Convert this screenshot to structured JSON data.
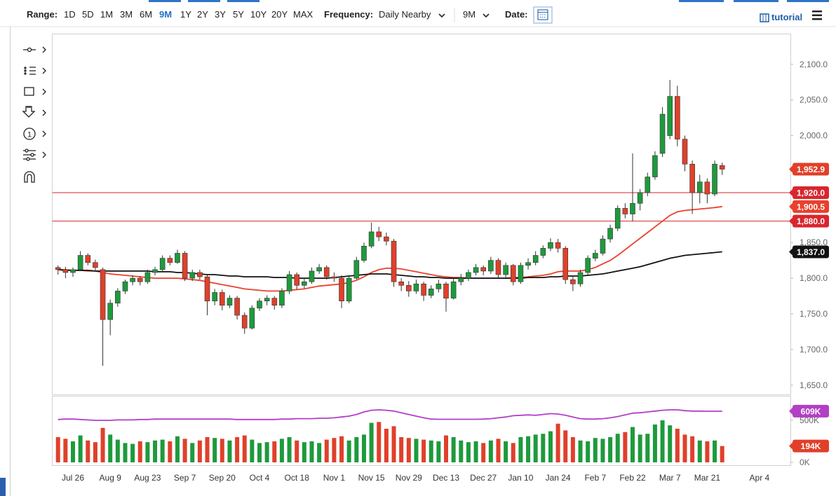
{
  "toolbar": {
    "range_label": "Range:",
    "ranges": [
      "1D",
      "5D",
      "1M",
      "3M",
      "6M",
      "9M",
      "1Y",
      "2Y",
      "3Y",
      "5Y",
      "10Y",
      "20Y",
      "MAX"
    ],
    "frequency_label": "Frequency:",
    "frequency": "Daily Nearby",
    "period": "9M",
    "date_label": "Date:",
    "tutorial": "tutorial"
  },
  "tools": {
    "counter": "1"
  },
  "chart_data": {
    "type": "candlestick",
    "categories": [
      null,
      null,
      "Jul 26",
      null,
      null,
      null,
      null,
      "Aug 9",
      null,
      null,
      null,
      null,
      "Aug 23",
      null,
      null,
      null,
      null,
      "Sep 7",
      null,
      null,
      null,
      null,
      "Sep 20",
      null,
      null,
      null,
      null,
      "Oct 4",
      null,
      null,
      null,
      null,
      "Oct 18",
      null,
      null,
      null,
      null,
      "Nov 1",
      null,
      null,
      null,
      null,
      "Nov 15",
      null,
      null,
      null,
      null,
      "Nov 29",
      null,
      null,
      null,
      null,
      "Dec 13",
      null,
      null,
      null,
      null,
      "Dec 27",
      null,
      null,
      null,
      null,
      "Jan 10",
      null,
      null,
      null,
      null,
      "Jan 24",
      null,
      null,
      null,
      null,
      "Feb 7",
      null,
      null,
      null,
      null,
      "Feb 22",
      null,
      null,
      null,
      null,
      "Mar 7",
      null,
      null,
      null,
      null,
      "Mar 21",
      null,
      null,
      null,
      null,
      null,
      null,
      "Apr 4"
    ],
    "ohlc": [
      [
        1815,
        1818,
        1805,
        1812
      ],
      [
        1812,
        1816,
        1800,
        1808
      ],
      [
        1808,
        1815,
        1802,
        1812
      ],
      [
        1812,
        1838,
        1810,
        1832
      ],
      [
        1832,
        1835,
        1818,
        1822
      ],
      [
        1822,
        1826,
        1810,
        1815
      ],
      [
        1812,
        1815,
        1677,
        1742
      ],
      [
        1742,
        1770,
        1720,
        1765
      ],
      [
        1765,
        1786,
        1760,
        1782
      ],
      [
        1782,
        1798,
        1778,
        1795
      ],
      [
        1795,
        1804,
        1790,
        1800
      ],
      [
        1800,
        1803,
        1790,
        1795
      ],
      [
        1795,
        1812,
        1792,
        1808
      ],
      [
        1808,
        1816,
        1804,
        1812
      ],
      [
        1812,
        1832,
        1808,
        1828
      ],
      [
        1828,
        1832,
        1818,
        1822
      ],
      [
        1822,
        1840,
        1820,
        1835
      ],
      [
        1835,
        1838,
        1796,
        1800
      ],
      [
        1800,
        1812,
        1796,
        1808
      ],
      [
        1808,
        1812,
        1798,
        1802
      ],
      [
        1802,
        1806,
        1748,
        1768
      ],
      [
        1768,
        1785,
        1762,
        1780
      ],
      [
        1780,
        1784,
        1755,
        1762
      ],
      [
        1762,
        1776,
        1758,
        1772
      ],
      [
        1772,
        1775,
        1742,
        1748
      ],
      [
        1748,
        1752,
        1722,
        1730
      ],
      [
        1730,
        1762,
        1728,
        1758
      ],
      [
        1758,
        1772,
        1754,
        1768
      ],
      [
        1768,
        1776,
        1762,
        1772
      ],
      [
        1772,
        1775,
        1756,
        1762
      ],
      [
        1762,
        1786,
        1758,
        1782
      ],
      [
        1782,
        1810,
        1778,
        1805
      ],
      [
        1805,
        1808,
        1784,
        1790
      ],
      [
        1790,
        1800,
        1786,
        1795
      ],
      [
        1795,
        1815,
        1792,
        1810
      ],
      [
        1810,
        1820,
        1806,
        1815
      ],
      [
        1815,
        1818,
        1798,
        1802
      ],
      [
        1802,
        1808,
        1795,
        1800
      ],
      [
        1800,
        1804,
        1758,
        1768
      ],
      [
        1768,
        1804,
        1765,
        1800
      ],
      [
        1800,
        1830,
        1798,
        1825
      ],
      [
        1825,
        1850,
        1822,
        1845
      ],
      [
        1845,
        1878,
        1842,
        1865
      ],
      [
        1865,
        1872,
        1852,
        1858
      ],
      [
        1858,
        1864,
        1846,
        1852
      ],
      [
        1852,
        1855,
        1788,
        1795
      ],
      [
        1795,
        1800,
        1782,
        1790
      ],
      [
        1790,
        1796,
        1774,
        1782
      ],
      [
        1782,
        1798,
        1778,
        1792
      ],
      [
        1792,
        1795,
        1768,
        1776
      ],
      [
        1776,
        1790,
        1772,
        1785
      ],
      [
        1785,
        1798,
        1780,
        1792
      ],
      [
        1792,
        1795,
        1753,
        1772
      ],
      [
        1772,
        1800,
        1770,
        1795
      ],
      [
        1795,
        1806,
        1790,
        1800
      ],
      [
        1800,
        1812,
        1796,
        1808
      ],
      [
        1808,
        1820,
        1804,
        1815
      ],
      [
        1815,
        1818,
        1804,
        1810
      ],
      [
        1810,
        1830,
        1806,
        1825
      ],
      [
        1825,
        1828,
        1800,
        1805
      ],
      [
        1805,
        1822,
        1800,
        1818
      ],
      [
        1818,
        1820,
        1790,
        1795
      ],
      [
        1795,
        1822,
        1792,
        1818
      ],
      [
        1818,
        1828,
        1812,
        1822
      ],
      [
        1822,
        1838,
        1818,
        1832
      ],
      [
        1832,
        1846,
        1828,
        1842
      ],
      [
        1842,
        1856,
        1838,
        1850
      ],
      [
        1850,
        1855,
        1836,
        1842
      ],
      [
        1842,
        1845,
        1792,
        1798
      ],
      [
        1798,
        1804,
        1782,
        1792
      ],
      [
        1792,
        1812,
        1788,
        1808
      ],
      [
        1808,
        1832,
        1804,
        1828
      ],
      [
        1828,
        1840,
        1824,
        1835
      ],
      [
        1835,
        1860,
        1832,
        1855
      ],
      [
        1855,
        1875,
        1850,
        1870
      ],
      [
        1870,
        1902,
        1866,
        1898
      ],
      [
        1898,
        1905,
        1884,
        1890
      ],
      [
        1890,
        1975,
        1880,
        1905
      ],
      [
        1905,
        1925,
        1895,
        1920
      ],
      [
        1920,
        1948,
        1915,
        1942
      ],
      [
        1942,
        1978,
        1938,
        1972
      ],
      [
        1975,
        2040,
        1970,
        2030
      ],
      [
        2000,
        2078,
        1995,
        2055
      ],
      [
        2055,
        2070,
        1985,
        1995
      ],
      [
        1995,
        2000,
        1950,
        1960
      ],
      [
        1960,
        1965,
        1890,
        1920
      ],
      [
        1920,
        1945,
        1905,
        1935
      ],
      [
        1935,
        1940,
        1905,
        1918
      ],
      [
        1918,
        1965,
        1915,
        1960
      ],
      [
        1958,
        1962,
        1945,
        1952.9
      ]
    ],
    "last_label": "1,952.9",
    "ylim": [
      1637,
      2143
    ],
    "yticks": [
      {
        "value": 1650,
        "label": "1,650.0"
      },
      {
        "value": 1700,
        "label": "1,700.0"
      },
      {
        "value": 1750,
        "label": "1,750.0"
      },
      {
        "value": 1800,
        "label": "1,800.0"
      },
      {
        "value": 1850,
        "label": "1,850.0"
      },
      {
        "value": 1900,
        "label": "1,900.0"
      },
      {
        "value": 1950,
        "label": "1,950.0"
      },
      {
        "value": 2000,
        "label": "2,000.0"
      },
      {
        "value": 2050,
        "label": "2,050.0"
      },
      {
        "value": 2100,
        "label": "2,100.0"
      }
    ],
    "levels": [
      {
        "value": 1920,
        "label": "1,920.0"
      },
      {
        "value": 1880,
        "label": "1,880.0"
      }
    ],
    "level_color": "#d9262e",
    "up_color": "#1e9a3c",
    "down_color": "#e0402a",
    "overlays": [
      {
        "color": "#e8412c",
        "last_label": "1,900.5",
        "values": [
          1812,
          1812,
          1811,
          1811,
          1810,
          1810,
          1808,
          1806,
          1805,
          1804,
          1803,
          1802,
          1801,
          1800,
          1800,
          1800,
          1800,
          1799,
          1798,
          1797,
          1795,
          1793,
          1791,
          1789,
          1787,
          1785,
          1784,
          1783,
          1782,
          1782,
          1782,
          1783,
          1784,
          1785,
          1787,
          1789,
          1790,
          1791,
          1792,
          1794,
          1797,
          1802,
          1808,
          1812,
          1814,
          1814,
          1813,
          1811,
          1809,
          1807,
          1805,
          1803,
          1802,
          1801,
          1801,
          1800,
          1800,
          1800,
          1800,
          1800,
          1800,
          1801,
          1801,
          1802,
          1803,
          1804,
          1806,
          1809,
          1810,
          1810,
          1810,
          1812,
          1815,
          1820,
          1825,
          1832,
          1840,
          1848,
          1856,
          1864,
          1872,
          1880,
          1888,
          1893,
          1895,
          1896,
          1897,
          1898,
          1899,
          1900.5
        ]
      },
      {
        "color": "#111111",
        "last_label": "1,837.0",
        "values": [
          1812,
          1811,
          1811,
          1811,
          1811,
          1810,
          1810,
          1810,
          1810,
          1810,
          1810,
          1810,
          1810,
          1809,
          1809,
          1809,
          1808,
          1808,
          1807,
          1806,
          1805,
          1805,
          1804,
          1803,
          1803,
          1802,
          1802,
          1802,
          1802,
          1801,
          1801,
          1801,
          1800,
          1800,
          1800,
          1800,
          1800,
          1801,
          1802,
          1803,
          1804,
          1805,
          1806,
          1806,
          1806,
          1805,
          1804,
          1803,
          1802,
          1802,
          1801,
          1801,
          1800,
          1800,
          1800,
          1800,
          1800,
          1800,
          1800,
          1800,
          1800,
          1800,
          1800,
          1801,
          1801,
          1801,
          1802,
          1802,
          1803,
          1803,
          1803,
          1804,
          1805,
          1806,
          1808,
          1810,
          1812,
          1814,
          1816,
          1819,
          1822,
          1825,
          1828,
          1830,
          1832,
          1833,
          1834,
          1835,
          1836,
          1837
        ]
      }
    ],
    "volume": {
      "values": [
        300,
        280,
        250,
        320,
        260,
        240,
        410,
        330,
        270,
        230,
        220,
        250,
        240,
        260,
        270,
        250,
        310,
        280,
        230,
        260,
        300,
        290,
        280,
        260,
        300,
        320,
        270,
        230,
        240,
        250,
        280,
        300,
        260,
        240,
        250,
        230,
        270,
        290,
        310,
        260,
        300,
        330,
        470,
        480,
        400,
        430,
        300,
        290,
        280,
        270,
        260,
        250,
        320,
        300,
        260,
        240,
        250,
        230,
        260,
        280,
        250,
        230,
        300,
        310,
        330,
        340,
        370,
        460,
        380,
        300,
        260,
        250,
        290,
        280,
        300,
        340,
        360,
        420,
        330,
        340,
        450,
        500,
        440,
        400,
        330,
        310,
        260,
        250,
        260,
        194
      ],
      "last_label": "194K",
      "average": [
        510,
        515,
        515,
        510,
        505,
        500,
        500,
        500,
        505,
        505,
        505,
        510,
        510,
        515,
        515,
        515,
        515,
        515,
        515,
        515,
        515,
        515,
        515,
        515,
        510,
        510,
        510,
        510,
        510,
        510,
        515,
        515,
        520,
        520,
        520,
        525,
        525,
        530,
        540,
        550,
        570,
        600,
        620,
        625,
        620,
        610,
        590,
        570,
        550,
        530,
        515,
        512,
        512,
        512,
        512,
        512,
        512,
        515,
        520,
        530,
        540,
        555,
        560,
        565,
        560,
        570,
        580,
        575,
        560,
        540,
        520,
        515,
        515,
        520,
        530,
        545,
        565,
        585,
        590,
        600,
        610,
        620,
        625,
        625,
        615,
        610,
        610,
        608,
        608,
        609
      ],
      "average_label": "609K",
      "average_color": "#b23fc6",
      "ylim": [
        -42,
        783
      ],
      "yticks": [
        {
          "value": 0,
          "label": "0K"
        },
        {
          "value": 500,
          "label": "500K"
        }
      ]
    }
  }
}
